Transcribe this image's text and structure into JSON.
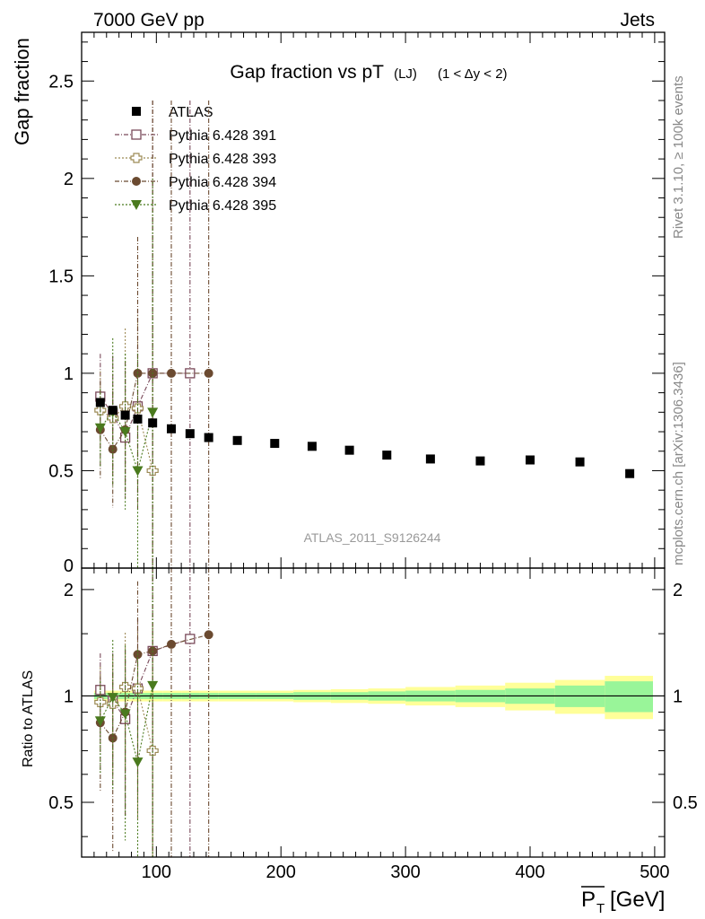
{
  "header": {
    "left": "7000 GeV pp",
    "right": "Jets"
  },
  "side_labels": {
    "rivet": "Rivet 3.1.10, ≥ 100k events",
    "mcplots": "mcplots.cern.ch [arXiv:1306.3436]"
  },
  "chart_data": {
    "type": "scatter",
    "title": "Gap fraction vs pT",
    "title_sub": "(LJ)",
    "title_range": "(1 < Δy < 2)",
    "watermark": "ATLAS_2011_S9126244",
    "xlabel": "P",
    "xlabel_sub": "T",
    "xlabel_unit": "[GeV]",
    "main": {
      "ylabel": "Gap fraction",
      "ylim": [
        0,
        2.75
      ],
      "yticks": [
        {
          "v": 0.5,
          "label": "0.5"
        },
        {
          "v": 1,
          "label": "1"
        },
        {
          "v": 1.5,
          "label": "1.5"
        },
        {
          "v": 2,
          "label": "2"
        },
        {
          "v": 2.5,
          "label": "2.5"
        }
      ]
    },
    "ratio": {
      "ylabel": "Ratio to ATLAS",
      "ylim": [
        0.35,
        2.3
      ],
      "yticks": [
        {
          "v": 0.5,
          "label": "0.5"
        },
        {
          "v": 1,
          "label": "1"
        },
        {
          "v": 2,
          "label": "2"
        }
      ]
    },
    "xlim": [
      40,
      508
    ],
    "xticks": [
      {
        "v": 100,
        "label": "100"
      },
      {
        "v": 200,
        "label": "200"
      },
      {
        "v": 300,
        "label": "300"
      },
      {
        "v": 400,
        "label": "400"
      },
      {
        "v": 500,
        "label": "500"
      }
    ],
    "legend_position": "top-left",
    "atlas": {
      "name": "ATLAS",
      "x": [
        55,
        65,
        75,
        85,
        97,
        112,
        127,
        142,
        165,
        195,
        225,
        255,
        285,
        320,
        360,
        400,
        440,
        480
      ],
      "y": [
        0.85,
        0.81,
        0.785,
        0.765,
        0.745,
        0.715,
        0.69,
        0.67,
        0.655,
        0.64,
        0.625,
        0.605,
        0.58,
        0.56,
        0.55,
        0.555,
        0.545,
        0.485
      ],
      "band_inner": [
        0.02,
        0.02,
        0.02,
        0.02,
        0.02,
        0.02,
        0.02,
        0.02,
        0.02,
        0.02,
        0.025,
        0.025,
        0.03,
        0.035,
        0.04,
        0.05,
        0.07,
        0.1
      ],
      "band_outer": [
        0.035,
        0.035,
        0.035,
        0.035,
        0.035,
        0.035,
        0.035,
        0.035,
        0.035,
        0.035,
        0.04,
        0.045,
        0.05,
        0.06,
        0.07,
        0.09,
        0.11,
        0.14
      ],
      "bin_edges": [
        50,
        60,
        70,
        80,
        90,
        105,
        120,
        135,
        150,
        180,
        210,
        240,
        270,
        300,
        340,
        380,
        420,
        460,
        500
      ]
    },
    "series": [
      {
        "name": "Pythia 6.428 391",
        "color": "#7a4a5a",
        "marker": "open-square",
        "x": [
          55,
          65,
          75,
          85,
          97,
          127
        ],
        "y": [
          0.88,
          0.79,
          0.67,
          0.83,
          1.0,
          1.0
        ],
        "err": [
          0.22,
          0.3,
          0.3,
          0.5,
          1.4,
          1.4
        ],
        "ratio": [
          1.04,
          0.97,
          0.86,
          1.05,
          1.34,
          1.45
        ],
        "ratio_err": [
          0.28,
          0.35,
          0.4,
          0.6,
          1.8,
          1.9
        ]
      },
      {
        "name": "Pythia 6.428 393",
        "color": "#9c8a55",
        "marker": "open-cross",
        "x": [
          55,
          65,
          75,
          85,
          97
        ],
        "y": [
          0.81,
          0.77,
          0.83,
          0.82,
          0.5
        ],
        "err": [
          0.2,
          0.3,
          0.4,
          0.5,
          0.8
        ],
        "ratio": [
          0.96,
          0.95,
          1.06,
          1.05,
          0.7
        ],
        "ratio_err": [
          0.25,
          0.35,
          0.45,
          0.6,
          0.9
        ]
      },
      {
        "name": "Pythia 6.428 394",
        "color": "#6b4a30",
        "marker": "filled-circle",
        "x": [
          55,
          65,
          75,
          85,
          97,
          112,
          142
        ],
        "y": [
          0.71,
          0.61,
          0.71,
          1.0,
          1.0,
          1.0,
          1.0
        ],
        "err": [
          0.25,
          0.3,
          0.35,
          0.7,
          1.4,
          1.4,
          1.4
        ],
        "ratio": [
          0.84,
          0.76,
          0.9,
          1.31,
          1.34,
          1.4,
          1.49
        ],
        "ratio_err": [
          0.3,
          0.4,
          0.45,
          0.8,
          1.8,
          1.9,
          2.0
        ]
      },
      {
        "name": "Pythia 6.428 395",
        "color": "#4a7a1e",
        "marker": "filled-triangle-down",
        "x": [
          55,
          65,
          75,
          85,
          97
        ],
        "y": [
          0.72,
          0.8,
          0.7,
          0.5,
          0.8
        ],
        "err": [
          0.2,
          0.38,
          0.4,
          0.6,
          1.2
        ],
        "ratio": [
          0.85,
          0.99,
          0.89,
          0.65,
          1.07
        ],
        "ratio_err": [
          0.25,
          0.45,
          0.5,
          0.7,
          1.4
        ]
      }
    ]
  }
}
